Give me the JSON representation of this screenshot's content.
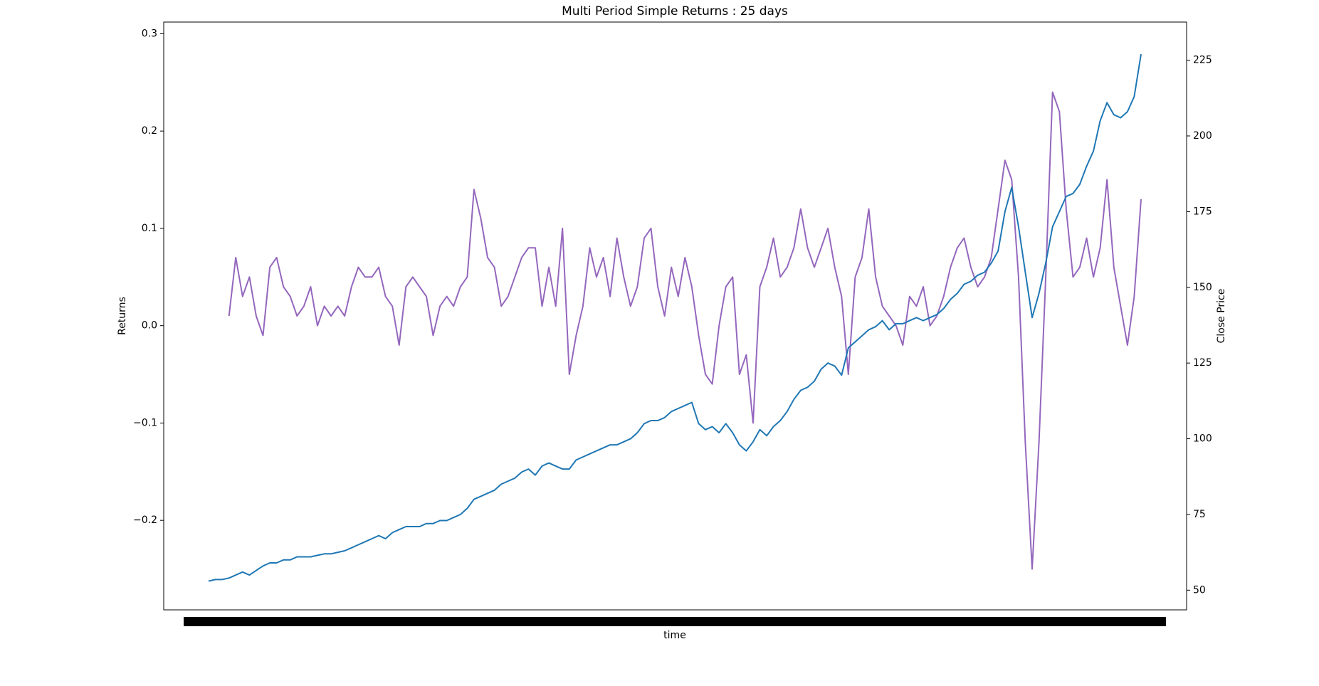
{
  "chart_data": {
    "type": "line",
    "title": "Multi Period Simple Returns : 25 days",
    "xlabel": "time",
    "ylabel": "Returns",
    "y2label": "Close Price",
    "ylim": [
      -0.292,
      0.312
    ],
    "yticks": [
      {
        "value": -0.2,
        "label": "−0.2"
      },
      {
        "value": -0.1,
        "label": "−0.1"
      },
      {
        "value": 0,
        "label": "0.0"
      },
      0.1,
      0.2,
      0.3
    ],
    "y2lim": [
      43.5,
      237.6
    ],
    "y2ticks": [
      50,
      75,
      100,
      125,
      150,
      175,
      200,
      225
    ],
    "ycolor": "#9467bd",
    "y2color": "#1f77b4",
    "series": [
      {
        "color": "#9467bd",
        "axis": "y",
        "values": [
          null,
          null,
          null,
          0.01,
          0.07,
          0.03,
          0.05,
          0.01,
          -0.01,
          0.06,
          0.07,
          0.04,
          0.03,
          0.01,
          0.02,
          0.04,
          0.0,
          0.02,
          0.01,
          0.02,
          0.01,
          0.04,
          0.06,
          0.05,
          0.05,
          0.06,
          0.03,
          0.02,
          -0.02,
          0.04,
          0.05,
          0.04,
          0.03,
          -0.01,
          0.02,
          0.03,
          0.02,
          0.04,
          0.05,
          0.14,
          0.11,
          0.07,
          0.06,
          0.02,
          0.03,
          0.05,
          0.07,
          0.08,
          0.08,
          0.02,
          0.06,
          0.02,
          0.1,
          -0.05,
          -0.01,
          0.02,
          0.08,
          0.05,
          0.07,
          0.03,
          0.09,
          0.05,
          0.02,
          0.04,
          0.09,
          0.1,
          0.04,
          0.01,
          0.06,
          0.03,
          0.07,
          0.04,
          -0.01,
          -0.05,
          -0.06,
          0.0,
          0.04,
          0.05,
          -0.05,
          -0.03,
          -0.1,
          0.04,
          0.06,
          0.09,
          0.05,
          0.06,
          0.08,
          0.12,
          0.08,
          0.06,
          0.08,
          0.1,
          0.06,
          0.03,
          -0.05,
          0.05,
          0.07,
          0.12,
          0.05,
          0.02,
          0.01,
          0.0,
          -0.02,
          0.03,
          0.02,
          0.04,
          0.0,
          0.01,
          0.03,
          0.06,
          0.08,
          0.09,
          0.06,
          0.04,
          0.05,
          0.07,
          0.12,
          0.17,
          0.15,
          0.05,
          -0.12,
          -0.25,
          -0.12,
          0.05,
          0.24,
          0.22,
          0.12,
          0.05,
          0.06,
          0.09,
          0.05,
          0.08,
          0.15,
          0.06,
          0.02,
          -0.02,
          0.03,
          0.13
        ]
      },
      {
        "color": "#1f77b4",
        "axis": "y2",
        "values": [
          53,
          53.5,
          53.5,
          54,
          55,
          56,
          55,
          56.5,
          58,
          59,
          59,
          60,
          60,
          61,
          61,
          61,
          61.5,
          62,
          62,
          62.5,
          63,
          64,
          65,
          66,
          67,
          68,
          67,
          69,
          70,
          71,
          71,
          71,
          72,
          72,
          73,
          73,
          74,
          75,
          77,
          80,
          81,
          82,
          83,
          85,
          86,
          87,
          89,
          90,
          88,
          91,
          92,
          91,
          90,
          90,
          93,
          94,
          95,
          96,
          97,
          98,
          98,
          99,
          100,
          102,
          105,
          106,
          106,
          107,
          109,
          110,
          111,
          112,
          105,
          103,
          104,
          102,
          105,
          102,
          98,
          96,
          99,
          103,
          101,
          104,
          106,
          109,
          113,
          116,
          117,
          119,
          123,
          125,
          124,
          121,
          130,
          132,
          134,
          136,
          137,
          139,
          136,
          138,
          138,
          139,
          140,
          139,
          140,
          141,
          143,
          146,
          148,
          151,
          152,
          154,
          155,
          158,
          162,
          175,
          183,
          170,
          155,
          140,
          148,
          158,
          170,
          175,
          180,
          181,
          184,
          190,
          195,
          205,
          211,
          207,
          206,
          208,
          213,
          227
        ]
      }
    ]
  }
}
